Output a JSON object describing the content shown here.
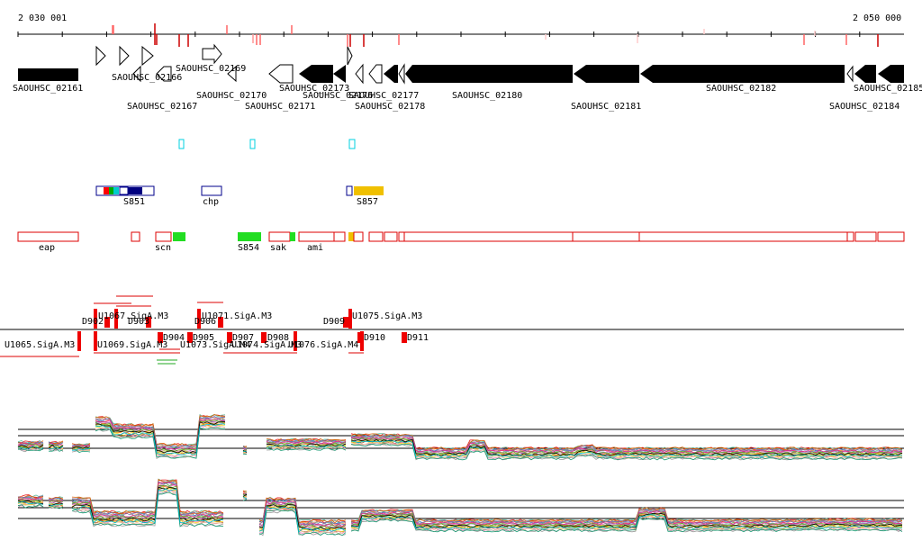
{
  "ruler": {
    "start_label": "2 030 001",
    "end_label": "2 050 000"
  },
  "genes": [
    {
      "id": "SAOUHSC_02161"
    },
    {
      "id": "SAOUHSC_02166"
    },
    {
      "id": "SAOUHSC_02167"
    },
    {
      "id": "SAOUHSC_02169"
    },
    {
      "id": "SAOUHSC_02170"
    },
    {
      "id": "SAOUHSC_02171"
    },
    {
      "id": "SAOUHSC_02173"
    },
    {
      "id": "SAOUHSC_02176"
    },
    {
      "id": "SAOUHSC_02177"
    },
    {
      "id": "SAOUHSC_02178"
    },
    {
      "id": "SAOUHSC_02180"
    },
    {
      "id": "SAOUHSC_02181"
    },
    {
      "id": "SAOUHSC_02182"
    },
    {
      "id": "SAOUHSC_02184"
    },
    {
      "id": "SAOUHSC_02185"
    }
  ],
  "regulator_tracks": [
    {
      "label": "S851"
    },
    {
      "label": "chp"
    },
    {
      "label": "S857"
    }
  ],
  "annotation_tracks": [
    {
      "label": "eap"
    },
    {
      "label": "scn"
    },
    {
      "label": "S854"
    },
    {
      "label": "sak"
    },
    {
      "label": "ami"
    }
  ],
  "promoter_labels": [
    {
      "text": "D902"
    },
    {
      "text": "U1067.SigA.M3"
    },
    {
      "text": "D903"
    },
    {
      "text": "U1071.SigA.M3"
    },
    {
      "text": "D906"
    },
    {
      "text": "D909"
    },
    {
      "text": "U1075.SigA.M3"
    },
    {
      "text": "U1065.SigA.M3"
    },
    {
      "text": "U1069.SigA.M3"
    },
    {
      "text": "D904"
    },
    {
      "text": "D905"
    },
    {
      "text": "U1073.SigA.M4"
    },
    {
      "text": "D907"
    },
    {
      "text": "D908"
    },
    {
      "text": "U1074.SigA.M3"
    },
    {
      "text": "U1076.SigA.M4"
    },
    {
      "text": "D910"
    },
    {
      "text": "D911"
    }
  ]
}
